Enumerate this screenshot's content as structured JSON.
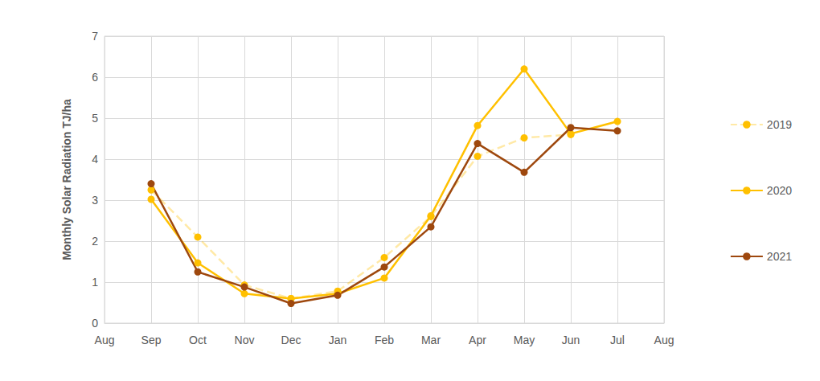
{
  "chart_data": {
    "type": "line",
    "y_label": "Monthly Solar Radiation TJ/ha",
    "categories": [
      "Aug",
      "Sep",
      "Oct",
      "Nov",
      "Dec",
      "Jan",
      "Feb",
      "Mar",
      "Apr",
      "May",
      "Jun",
      "Jul",
      "Aug"
    ],
    "series": [
      {
        "name": "2019",
        "color": "#ffc000",
        "line_style": "dashed",
        "marker": "circle",
        "values": [
          null,
          3.25,
          2.1,
          0.93,
          0.6,
          0.78,
          1.6,
          2.6,
          4.07,
          4.52,
          4.6,
          null,
          null
        ]
      },
      {
        "name": "2020",
        "color": "#ffc000",
        "line_style": "solid",
        "marker": "circle",
        "values": [
          null,
          3.02,
          1.47,
          0.72,
          0.6,
          0.72,
          1.1,
          2.62,
          4.82,
          6.2,
          4.62,
          4.92,
          null
        ]
      },
      {
        "name": "2021",
        "color": "#9e480e",
        "line_style": "solid",
        "marker": "circle",
        "values": [
          null,
          3.4,
          1.25,
          0.88,
          0.48,
          0.68,
          1.37,
          2.35,
          4.38,
          3.68,
          4.77,
          4.69,
          null
        ]
      }
    ],
    "ylim": [
      0,
      7
    ],
    "yticks": [
      0,
      1,
      2,
      3,
      4,
      5,
      6,
      7
    ],
    "grid": true,
    "legend": "right"
  }
}
